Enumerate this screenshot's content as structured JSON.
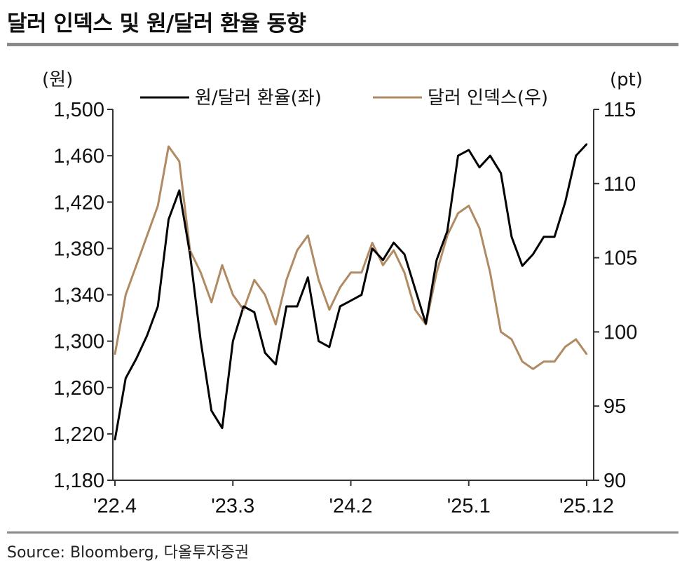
{
  "title": "달러 인덱스 및 원/달러 환율 동향",
  "source": "Source: Bloomberg, 다올투자증권",
  "chart_data": {
    "type": "line",
    "left_unit": "(원)",
    "right_unit": "(pt)",
    "x_ticks": [
      "'22.4",
      "'23.3",
      "'24.2",
      "'25.1",
      "'25.12"
    ],
    "y_left": {
      "ticks": [
        "1,180",
        "1,220",
        "1,260",
        "1,300",
        "1,340",
        "1,380",
        "1,420",
        "1,460",
        "1,500"
      ],
      "range": [
        1180,
        1500
      ]
    },
    "y_right": {
      "ticks": [
        "90",
        "95",
        "100",
        "105",
        "110",
        "115"
      ],
      "range": [
        90,
        115
      ]
    },
    "grid": false,
    "legend_position": "top",
    "colors": {
      "krw": "#000000",
      "dxy": "#b08a62"
    },
    "series": [
      {
        "name": "원/달러 환율(좌)",
        "axis": "left",
        "x": [
          "2022-04",
          "2022-05",
          "2022-06",
          "2022-07",
          "2022-08",
          "2022-09",
          "2022-10",
          "2022-11",
          "2022-12",
          "2023-01",
          "2023-02",
          "2023-03",
          "2023-04",
          "2023-05",
          "2023-06",
          "2023-07",
          "2023-08",
          "2023-09",
          "2023-10",
          "2023-11",
          "2023-12",
          "2024-01",
          "2024-02",
          "2024-03",
          "2024-04",
          "2024-05",
          "2024-06",
          "2024-07",
          "2024-08",
          "2024-09",
          "2024-10",
          "2024-11",
          "2024-12",
          "2025-01",
          "2025-02",
          "2025-03",
          "2025-04",
          "2025-05",
          "2025-06",
          "2025-07",
          "2025-08",
          "2025-09",
          "2025-10",
          "2025-11",
          "2025-12"
        ],
        "values": [
          1215,
          1268,
          1285,
          1305,
          1330,
          1405,
          1430,
          1375,
          1300,
          1240,
          1225,
          1300,
          1330,
          1325,
          1290,
          1280,
          1330,
          1330,
          1355,
          1300,
          1295,
          1330,
          1335,
          1340,
          1380,
          1370,
          1385,
          1375,
          1345,
          1315,
          1370,
          1395,
          1460,
          1465,
          1450,
          1460,
          1445,
          1390,
          1365,
          1375,
          1390,
          1390,
          1420,
          1460,
          1470
        ]
      },
      {
        "name": "달러 인덱스(우)",
        "axis": "right",
        "x": [
          "2022-04",
          "2022-05",
          "2022-06",
          "2022-07",
          "2022-08",
          "2022-09",
          "2022-10",
          "2022-11",
          "2022-12",
          "2023-01",
          "2023-02",
          "2023-03",
          "2023-04",
          "2023-05",
          "2023-06",
          "2023-07",
          "2023-08",
          "2023-09",
          "2023-10",
          "2023-11",
          "2023-12",
          "2024-01",
          "2024-02",
          "2024-03",
          "2024-04",
          "2024-05",
          "2024-06",
          "2024-07",
          "2024-08",
          "2024-09",
          "2024-10",
          "2024-11",
          "2024-12",
          "2025-01",
          "2025-02",
          "2025-03",
          "2025-04",
          "2025-05",
          "2025-06",
          "2025-07",
          "2025-08",
          "2025-09",
          "2025-10",
          "2025-11",
          "2025-12"
        ],
        "values": [
          98.5,
          102.5,
          104.5,
          106.5,
          108.5,
          112.5,
          111.5,
          105.5,
          104.0,
          102.0,
          104.5,
          102.5,
          101.5,
          103.5,
          102.5,
          100.5,
          103.5,
          105.5,
          106.5,
          103.5,
          101.5,
          103.0,
          104.0,
          104.0,
          106.0,
          104.5,
          105.5,
          104.0,
          101.5,
          100.5,
          104.0,
          106.5,
          108.0,
          108.5,
          107.0,
          104.0,
          100.0,
          99.5,
          98.0,
          97.5,
          98.0,
          98.0,
          99.0,
          99.5,
          98.5
        ]
      }
    ]
  }
}
